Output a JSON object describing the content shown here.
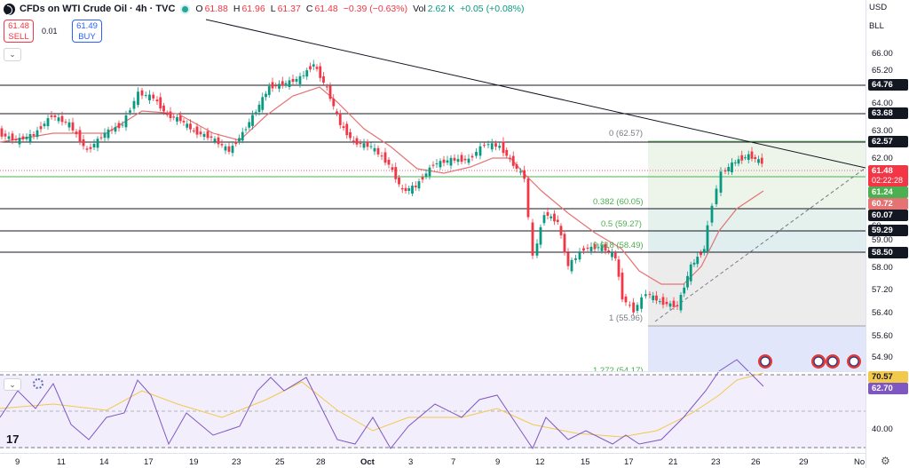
{
  "header": {
    "symbol": "CFDs on WTI Crude Oil · 4h · TVC",
    "o_key": "O",
    "o": "61.88",
    "h_key": "H",
    "h": "61.96",
    "l_key": "L",
    "l": "61.37",
    "c_key": "C",
    "c": "61.48",
    "chg": "−0.39 (−0.63%)",
    "vol_key": "Vol",
    "vol": "2.62 K",
    "vol_chg": "+0.05 (+0.08%)"
  },
  "trade": {
    "sell_price": "61.48",
    "sell_label": "SELL",
    "buy_price": "61.49",
    "buy_label": "BUY",
    "spread": "0.01"
  },
  "axis": {
    "currency": "USD",
    "unit": "BLL",
    "ticks": [
      "66.00",
      "65.20",
      "64.00",
      "63.00",
      "62.00",
      "58.00",
      "57.20",
      "56.40",
      "55.60",
      "54.90"
    ],
    "levels": [
      "64.76",
      "63.68",
      "62.57",
      "60.07",
      "59.29",
      "58.50"
    ],
    "price": "61.48",
    "countdown": "02:22:28",
    "fib_lab": "61.24",
    "ma_lab": "60.72",
    "partial_ticks": [
      "61.",
      "60.",
      "59.00"
    ],
    "rsi_ticks": [
      "40.00"
    ],
    "rsi_a": "70.57",
    "rsi_b": "62.70"
  },
  "fib": {
    "l0": "0 (62.57)",
    "l382": "0.382 (60.05)",
    "l5": "0.5 (59.27)",
    "l618": "0.618 (58.49)",
    "l1": "1 (55.96)",
    "l1272": "1.272 (54.17)"
  },
  "dates": [
    "9",
    "11",
    "14",
    "17",
    "19",
    "23",
    "25",
    "28",
    "Oct",
    "3",
    "7",
    "9",
    "12",
    "15",
    "17",
    "21",
    "23",
    "26",
    "29",
    "No"
  ],
  "colors": {
    "up": "#089981",
    "down": "#f23645",
    "ma": "#e57373",
    "rsi": "#7e57c2",
    "rsima": "#f2c94c"
  }
}
